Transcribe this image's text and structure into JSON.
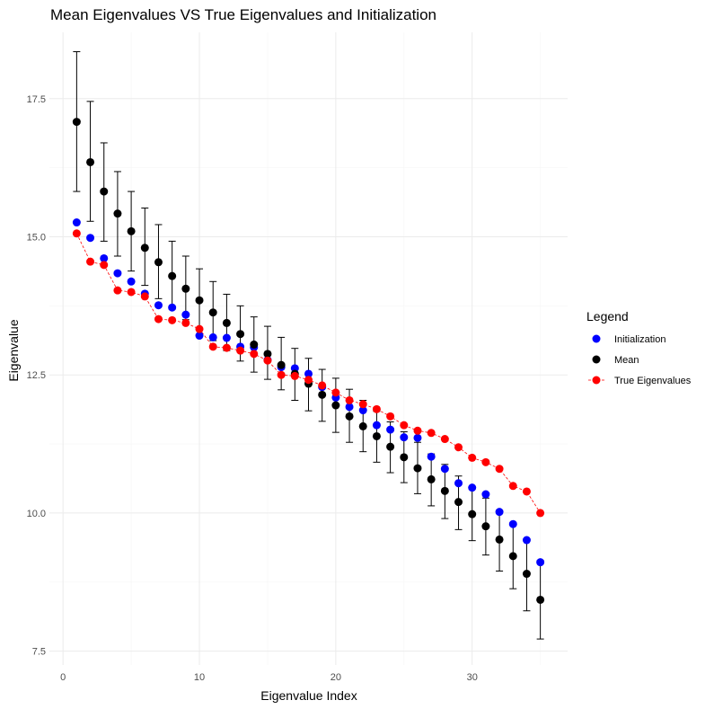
{
  "chart_data": {
    "type": "scatter",
    "title": "Mean Eigenvalues VS True Eigenvalues and Initialization",
    "xlabel": "Eigenvalue Index",
    "ylabel": "Eigenvalue",
    "xlim": [
      -1,
      37
    ],
    "ylim": [
      7.25,
      18.7
    ],
    "xticks": [
      0,
      10,
      20,
      30
    ],
    "yticks": [
      7.5,
      10.0,
      12.5,
      15.0,
      17.5
    ],
    "ytick_labels": [
      "7.5",
      "10.0",
      "12.5",
      "15.0",
      "17.5"
    ],
    "xtick_labels": [
      "0",
      "10",
      "20",
      "30"
    ],
    "grid": true,
    "legend": {
      "title": "Legend",
      "position": "right",
      "entries": [
        {
          "label": "Initialization",
          "color": "#0000ff",
          "line": false
        },
        {
          "label": "Mean",
          "color": "#000000",
          "line": false
        },
        {
          "label": "True Eigenvalues",
          "color": "#ff0000",
          "line": true
        }
      ]
    },
    "x": [
      1,
      2,
      3,
      4,
      5,
      6,
      7,
      8,
      9,
      10,
      11,
      12,
      13,
      14,
      15,
      16,
      17,
      18,
      19,
      20,
      21,
      22,
      23,
      24,
      25,
      26,
      27,
      28,
      29,
      30,
      31,
      32,
      33,
      34,
      35
    ],
    "series": [
      {
        "name": "Mean",
        "color": "#000000",
        "values": [
          17.08,
          16.35,
          15.82,
          15.42,
          15.1,
          14.8,
          14.54,
          14.29,
          14.06,
          13.85,
          13.63,
          13.44,
          13.24,
          13.05,
          12.88,
          12.68,
          12.52,
          12.34,
          12.14,
          11.95,
          11.75,
          11.57,
          11.39,
          11.2,
          11.01,
          10.81,
          10.61,
          10.4,
          10.2,
          9.98,
          9.76,
          9.52,
          9.22,
          8.9,
          8.43
        ],
        "error_lower": [
          15.82,
          15.28,
          14.92,
          14.65,
          14.38,
          14.12,
          13.88,
          13.69,
          13.5,
          13.32,
          13.12,
          12.94,
          12.75,
          12.55,
          12.42,
          12.23,
          12.04,
          11.85,
          11.66,
          11.46,
          11.28,
          11.11,
          10.92,
          10.73,
          10.55,
          10.35,
          10.13,
          9.9,
          9.7,
          9.5,
          9.24,
          8.95,
          8.63,
          8.23,
          7.72
        ],
        "error_upper": [
          18.35,
          17.45,
          16.7,
          16.18,
          15.82,
          15.52,
          15.22,
          14.92,
          14.65,
          14.42,
          14.19,
          13.96,
          13.75,
          13.55,
          13.38,
          13.18,
          12.98,
          12.8,
          12.6,
          12.44,
          12.24,
          12.04,
          11.84,
          11.65,
          11.47,
          11.28,
          11.07,
          10.88,
          10.67,
          10.45,
          10.27,
          10.05,
          9.8,
          9.5,
          9.14
        ]
      },
      {
        "name": "Initialization",
        "color": "#0000ff",
        "values": [
          15.26,
          14.98,
          14.61,
          14.34,
          14.19,
          13.97,
          13.76,
          13.72,
          13.59,
          13.21,
          13.18,
          13.17,
          13.01,
          13.0,
          12.77,
          12.64,
          12.62,
          12.52,
          12.28,
          12.09,
          11.92,
          11.86,
          11.59,
          11.51,
          11.37,
          11.36,
          11.02,
          10.8,
          10.54,
          10.46,
          10.34,
          10.02,
          9.8,
          9.51,
          9.11
        ]
      },
      {
        "name": "True Eigenvalues",
        "color": "#ff0000",
        "values": [
          15.06,
          14.55,
          14.49,
          14.03,
          14.0,
          13.92,
          13.51,
          13.49,
          13.44,
          13.33,
          13.01,
          12.99,
          12.94,
          12.88,
          12.76,
          12.5,
          12.48,
          12.41,
          12.31,
          12.18,
          12.04,
          11.97,
          11.88,
          11.75,
          11.59,
          11.49,
          11.45,
          11.34,
          11.19,
          11.0,
          10.92,
          10.8,
          10.49,
          10.39,
          10.0
        ]
      }
    ]
  }
}
